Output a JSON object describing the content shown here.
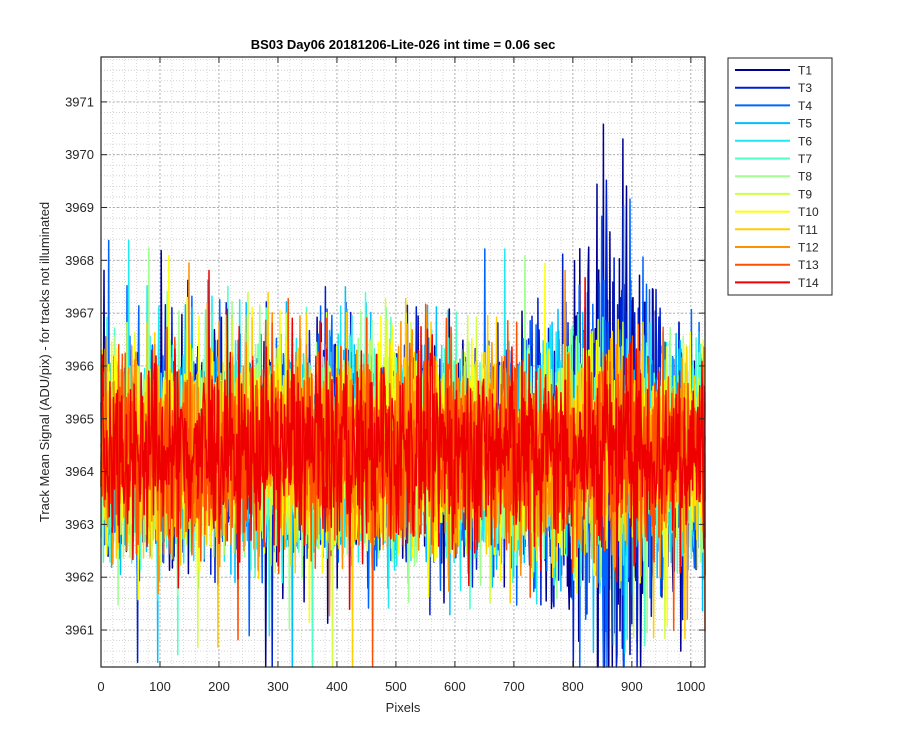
{
  "chart_data": {
    "type": "line",
    "title": "BS03 Day06 20181206-Lite-026 int time = 0.06 sec",
    "xlabel": "Pixels",
    "ylabel": "Track Mean Signal (ADU/pix) - for tracks not illuminated",
    "xlim": [
      0,
      1024
    ],
    "ylim": [
      3960.3,
      3971.85
    ],
    "x_ticks": [
      "0",
      "100",
      "200",
      "300",
      "400",
      "500",
      "600",
      "700",
      "800",
      "900",
      "1000"
    ],
    "y_ticks": [
      "3961",
      "3962",
      "3963",
      "3964",
      "3965",
      "3966",
      "3967",
      "3968",
      "3969",
      "3970",
      "3971"
    ],
    "grid": "major and minor, dotted",
    "legend_position": "outside-top-right",
    "points_per_series": 1024,
    "series": [
      {
        "name": "T1",
        "color": "#00008f",
        "baseline": 3964.4,
        "noise_amplitude": 1.4,
        "bump_center": 860,
        "bump_width": 70,
        "bump_height": 2.5
      },
      {
        "name": "T3",
        "color": "#0020d0",
        "baseline": 3964.4,
        "noise_amplitude": 1.4,
        "bump_center": 860,
        "bump_width": 70,
        "bump_height": 2.0
      },
      {
        "name": "T4",
        "color": "#0064ff",
        "baseline": 3964.4,
        "noise_amplitude": 1.4,
        "bump_center": 860,
        "bump_width": 70,
        "bump_height": 1.8
      },
      {
        "name": "T5",
        "color": "#00bfff",
        "baseline": 3964.4,
        "noise_amplitude": 1.4
      },
      {
        "name": "T6",
        "color": "#1fe9f0",
        "baseline": 3964.4,
        "noise_amplitude": 1.4
      },
      {
        "name": "T7",
        "color": "#4fffc8",
        "baseline": 3964.4,
        "noise_amplitude": 1.35
      },
      {
        "name": "T8",
        "color": "#9fff8f",
        "baseline": 3964.4,
        "noise_amplitude": 1.35
      },
      {
        "name": "T9",
        "color": "#cfff40",
        "baseline": 3964.4,
        "noise_amplitude": 1.3
      },
      {
        "name": "T10",
        "color": "#ffff00",
        "baseline": 3964.4,
        "noise_amplitude": 1.3
      },
      {
        "name": "T11",
        "color": "#ffcf00",
        "baseline": 3964.4,
        "noise_amplitude": 1.3
      },
      {
        "name": "T12",
        "color": "#ff9000",
        "baseline": 3964.4,
        "noise_amplitude": 1.25
      },
      {
        "name": "T13",
        "color": "#ff5000",
        "baseline": 3964.4,
        "noise_amplitude": 1.25
      },
      {
        "name": "T14",
        "color": "#ee0000",
        "baseline": 3964.4,
        "noise_amplitude": 1.2
      }
    ]
  }
}
